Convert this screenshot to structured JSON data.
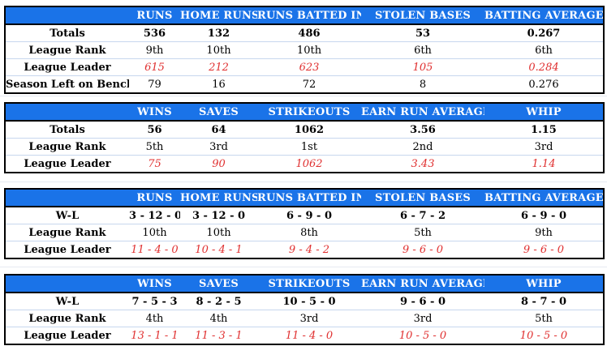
{
  "hitting": {
    "headers": [
      "",
      "RUNS",
      "HOME RUNS",
      "RUNS BATTED IN",
      "STOLEN BASES",
      "BATTING AVERAGE"
    ],
    "rows": [
      {
        "label": "Totals",
        "style": "bold",
        "values": [
          "536",
          "132",
          "486",
          "53",
          "0.267"
        ]
      },
      {
        "label": "League Rank",
        "style": "normal",
        "values": [
          "9th",
          "10th",
          "10th",
          "6th",
          "6th"
        ]
      },
      {
        "label": "League Leader",
        "style": "red",
        "values": [
          "615",
          "212",
          "623",
          "105",
          "0.284"
        ]
      },
      {
        "label": "Season Left on Bench",
        "style": "normal",
        "values": [
          "79",
          "16",
          "72",
          "8",
          "0.276"
        ]
      }
    ]
  },
  "pitching": {
    "headers": [
      "",
      "WINS",
      "SAVES",
      "STRIKEOUTS",
      "EARN RUN AVERAGE",
      "WHIP"
    ],
    "rows": [
      {
        "label": "Totals",
        "style": "bold",
        "values": [
          "56",
          "64",
          "1062",
          "3.56",
          "1.15"
        ]
      },
      {
        "label": "League Rank",
        "style": "normal",
        "values": [
          "5th",
          "3rd",
          "1st",
          "2nd",
          "3rd"
        ]
      },
      {
        "label": "League Leader",
        "style": "red",
        "values": [
          "75",
          "90",
          "1062",
          "3.43",
          "1.14"
        ]
      }
    ]
  },
  "hitting_wl": {
    "headers": [
      "",
      "RUNS",
      "HOME RUNS",
      "RUNS BATTED IN",
      "STOLEN BASES",
      "BATTING AVERAGE"
    ],
    "rows": [
      {
        "label": "W-L",
        "style": "bold",
        "values": [
          "3 - 12 - 0",
          "3 - 12 - 0",
          "6 - 9 - 0",
          "6 - 7 - 2",
          "6 - 9 - 0"
        ]
      },
      {
        "label": "League Rank",
        "style": "normal",
        "values": [
          "10th",
          "10th",
          "8th",
          "5th",
          "9th"
        ]
      },
      {
        "label": "League Leader",
        "style": "red",
        "values": [
          "11 - 4 - 0",
          "10 - 4 - 1",
          "9 - 4 - 2",
          "9 - 6 - 0",
          "9 - 6 - 0"
        ]
      }
    ]
  },
  "pitching_wl": {
    "headers": [
      "",
      "WINS",
      "SAVES",
      "STRIKEOUTS",
      "EARN RUN AVERAGE",
      "WHIP"
    ],
    "rows": [
      {
        "label": "W-L",
        "style": "bold",
        "values": [
          "7 - 5 - 3",
          "8 - 2 - 5",
          "10 - 5 - 0",
          "9 - 6 - 0",
          "8 - 7 - 0"
        ]
      },
      {
        "label": "League Rank",
        "style": "normal",
        "values": [
          "4th",
          "4th",
          "3rd",
          "3rd",
          "5th"
        ]
      },
      {
        "label": "League Leader",
        "style": "red",
        "values": [
          "13 - 1 - 1",
          "11 - 3 - 1",
          "11 - 4 - 0",
          "10 - 5 - 0",
          "10 - 5 - 0"
        ]
      }
    ]
  },
  "colors": {
    "header_bg": "#1a73e8",
    "header_text": "#ffffff",
    "leader_text": "#e03030"
  }
}
